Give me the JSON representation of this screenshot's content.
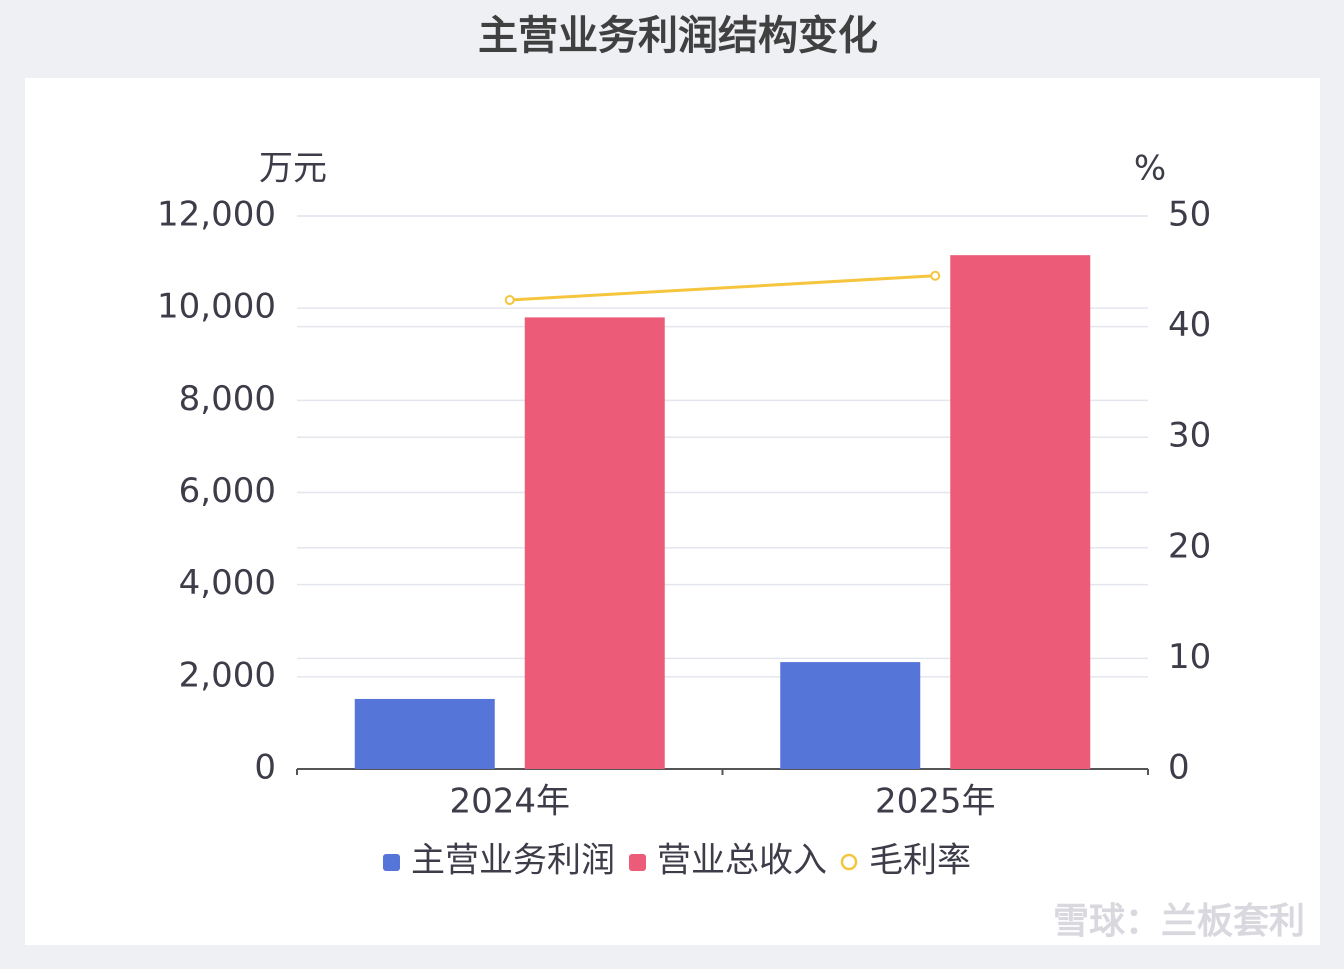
{
  "chart_data": {
    "type": "bar",
    "title": "主营业务利润结构变化",
    "y_label": "万元",
    "y2_label": "%",
    "categories": [
      "2024年",
      "2025年"
    ],
    "series": [
      {
        "name": "主营业务利润",
        "type": "bar",
        "color": "#5575d8",
        "values": [
          1520,
          2320
        ]
      },
      {
        "name": "营业总收入",
        "type": "bar",
        "color": "#ec5b78",
        "values": [
          9800,
          11150
        ]
      },
      {
        "name": "毛利率",
        "type": "line",
        "axis": "y2",
        "color": "#f5c53e",
        "values": [
          42.4,
          44.6
        ]
      }
    ],
    "ylim": [
      0,
      12000
    ],
    "yticks": [
      0,
      {
        "value": 2000,
        "label": "2,000"
      },
      {
        "value": 4000,
        "label": "4,000"
      },
      {
        "value": 6000,
        "label": "6,000"
      },
      {
        "value": 8000,
        "label": "8,000"
      },
      {
        "value": 10000,
        "label": "10,000"
      },
      {
        "value": 12000,
        "label": "12,000"
      }
    ],
    "y2lim": [
      0,
      50
    ],
    "y2ticks": [
      0,
      10,
      20,
      30,
      40,
      50
    ],
    "grid": true,
    "legend": "bottom",
    "watermark": "雪球：兰板套利"
  }
}
